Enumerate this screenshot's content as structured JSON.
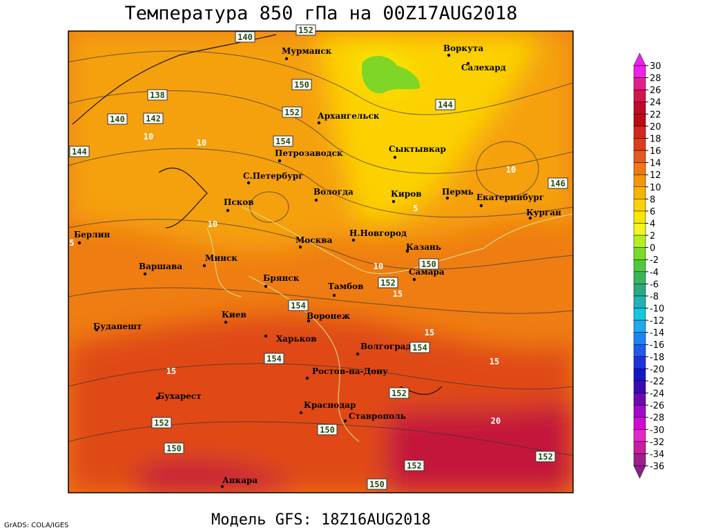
{
  "header": {
    "title": "Температура 850 гПа на 00Z17AUG2018"
  },
  "map": {
    "cities": [
      "Мурманск",
      "Воркута",
      "Салехард",
      "Архангельск",
      "Петрозаводск",
      "Сыктывкар",
      "С.Петербург",
      "Вологда",
      "Киров",
      "Пермь",
      "Екатеринбург",
      "Курган",
      "Псков",
      "Берлин",
      "Москва",
      "Н.Новгород",
      "Казань",
      "Минск",
      "Варшава",
      "Самара",
      "Брянск",
      "Тамбов",
      "Киев",
      "Воронеж",
      "Будапешт",
      "Харьков",
      "Волгоград",
      "Ростов-на-Дону",
      "Бухарест",
      "Краснодар",
      "Ставрополь",
      "Анкара"
    ],
    "height_labels": [
      "140",
      "138",
      "140",
      "142",
      "144",
      "150",
      "152",
      "154",
      "144",
      "146",
      "154",
      "152",
      "150",
      "152",
      "154",
      "154",
      "152",
      "152",
      "150",
      "150",
      "152",
      "150",
      "152"
    ],
    "temp_labels": [
      "10",
      "10",
      "10",
      "5",
      "10",
      "10",
      "5",
      "15",
      "15",
      "15",
      "15",
      "20"
    ]
  },
  "colorbar": {
    "ticks": [
      30,
      28,
      26,
      24,
      22,
      20,
      18,
      16,
      14,
      12,
      10,
      8,
      6,
      4,
      2,
      0,
      -2,
      -4,
      -6,
      -8,
      -10,
      -12,
      -14,
      -16,
      -18,
      -20,
      -22,
      -24,
      -26,
      -28,
      -30,
      -32,
      -34,
      -36
    ],
    "colors": [
      "#f01ef0",
      "#e61e8c",
      "#d21450",
      "#c00a28",
      "#be0a14",
      "#d2281e",
      "#dc3c1e",
      "#e65a1e",
      "#f07814",
      "#f5960a",
      "#f5b400",
      "#fad200",
      "#fae600",
      "#f0f51e",
      "#b4f01e",
      "#78dc28",
      "#50c83c",
      "#3cb45a",
      "#28aa82",
      "#1eb4b4",
      "#14c8dc",
      "#1eaaf0",
      "#1e82f0",
      "#1e5af0",
      "#1e32dc",
      "#1414c8",
      "#3c0ab4",
      "#6e0ab4",
      "#a00ac8",
      "#d20ad2",
      "#e628c8",
      "#c81ea0",
      "#a01e8c"
    ]
  },
  "footer": {
    "model": "Модель GFS: 18Z16AUG2018",
    "credit": "GrADS: COLA/IGES"
  }
}
